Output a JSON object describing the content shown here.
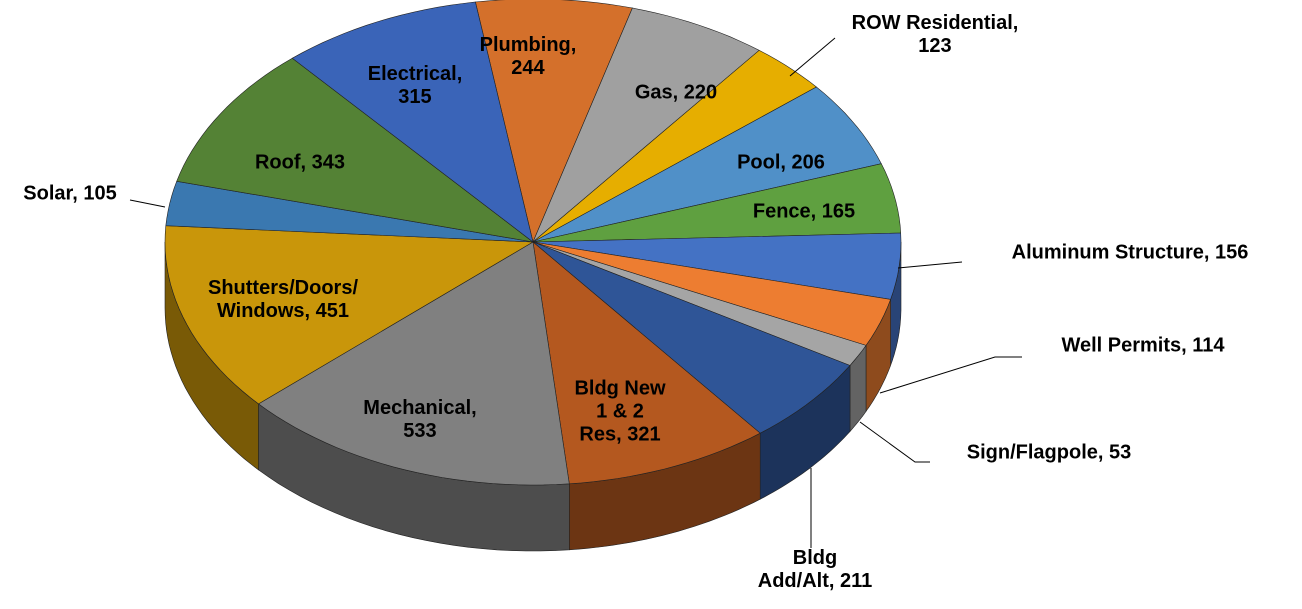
{
  "chart_data": {
    "type": "pie",
    "values": [
      244,
      220,
      123,
      206,
      165,
      156,
      114,
      53,
      211,
      321,
      533,
      451,
      105,
      343,
      315
    ],
    "value_labels": [
      "Plumbing,\n244",
      "Gas, 220",
      "ROW Residential,\n123",
      "Pool, 206",
      "Fence, 165",
      "Aluminum Structure, 156",
      "Well Permits, 114",
      "Sign/Flagpole, 53",
      "Bldg\nAdd/Alt, 211",
      "Bldg New\n1 & 2\nRes, 321",
      "Mechanical,\n533",
      "Shutters/Doors/\nWindows, 451",
      "Solar, 105",
      "Roof, 343",
      "Electrical,\n315"
    ],
    "colors": [
      "#d4702b",
      "#a0a0a0",
      "#e6ae00",
      "#5090c8",
      "#5fa040",
      "#4472c4",
      "#ed7d31",
      "#a5a5a5",
      "#2f5597",
      "#b4581f",
      "#808080",
      "#c9960a",
      "#3a78b0",
      "#548235",
      "#3a64b8"
    ]
  }
}
